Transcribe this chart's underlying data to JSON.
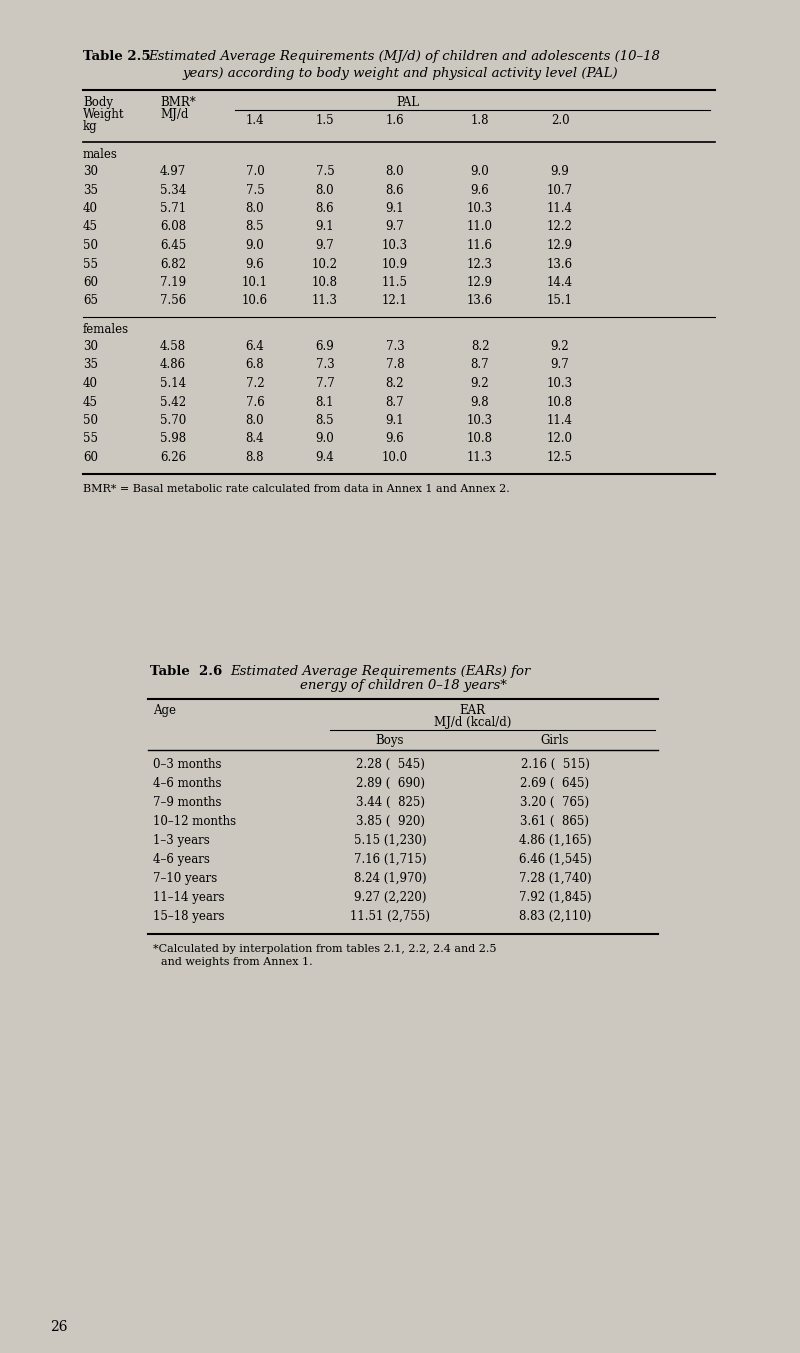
{
  "bg_color": "#ccc8bf",
  "page_number": "26",
  "table25": {
    "title_bold": "Table 2.5",
    "title_italic_line1": "Estimated Average Requirements (MJ/d) of children and adolescents (10–18",
    "title_italic_line2": "years) according to body weight and physical activity level (PAL)",
    "pal_header": "PAL",
    "males_label": "males",
    "females_label": "females",
    "males_data": [
      [
        "30",
        "4.97",
        "7.0",
        "7.5",
        "8.0",
        "9.0",
        "9.9"
      ],
      [
        "35",
        "5.34",
        "7.5",
        "8.0",
        "8.6",
        "9.6",
        "10.7"
      ],
      [
        "40",
        "5.71",
        "8.0",
        "8.6",
        "9.1",
        "10.3",
        "11.4"
      ],
      [
        "45",
        "6.08",
        "8.5",
        "9.1",
        "9.7",
        "11.0",
        "12.2"
      ],
      [
        "50",
        "6.45",
        "9.0",
        "9.7",
        "10.3",
        "11.6",
        "12.9"
      ],
      [
        "55",
        "6.82",
        "9.6",
        "10.2",
        "10.9",
        "12.3",
        "13.6"
      ],
      [
        "60",
        "7.19",
        "10.1",
        "10.8",
        "11.5",
        "12.9",
        "14.4"
      ],
      [
        "65",
        "7.56",
        "10.6",
        "11.3",
        "12.1",
        "13.6",
        "15.1"
      ]
    ],
    "females_data": [
      [
        "30",
        "4.58",
        "6.4",
        "6.9",
        "7.3",
        "8.2",
        "9.2"
      ],
      [
        "35",
        "4.86",
        "6.8",
        "7.3",
        "7.8",
        "8.7",
        "9.7"
      ],
      [
        "40",
        "5.14",
        "7.2",
        "7.7",
        "8.2",
        "9.2",
        "10.3"
      ],
      [
        "45",
        "5.42",
        "7.6",
        "8.1",
        "8.7",
        "9.8",
        "10.8"
      ],
      [
        "50",
        "5.70",
        "8.0",
        "8.5",
        "9.1",
        "10.3",
        "11.4"
      ],
      [
        "55",
        "5.98",
        "8.4",
        "9.0",
        "9.6",
        "10.8",
        "12.0"
      ],
      [
        "60",
        "6.26",
        "8.8",
        "9.4",
        "10.0",
        "11.3",
        "12.5"
      ]
    ],
    "footnote": "BMR* = Basal metabolic rate calculated from data in Annex 1 and Annex 2."
  },
  "table26": {
    "title_bold": "Table  2.6",
    "title_italic_line1": "Estimated Average Requirements (EARs) for",
    "title_italic_line2": "energy of children 0–18 years*",
    "age_header": "Age",
    "ear_line1": "EAR",
    "ear_line2": "MJ/d (kcal/d)",
    "boys_header": "Boys",
    "girls_header": "Girls",
    "rows": [
      [
        "0–3 months",
        "2.28 (  545)",
        "2.16 (  515)"
      ],
      [
        "4–6 months",
        "2.89 (  690)",
        "2.69 (  645)"
      ],
      [
        "7–9 months",
        "3.44 (  825)",
        "3.20 (  765)"
      ],
      [
        "10–12 months",
        "3.85 (  920)",
        "3.61 (  865)"
      ],
      [
        "1–3 years",
        "5.15 (1,230)",
        "4.86 (1,165)"
      ],
      [
        "4–6 years",
        "7.16 (1,715)",
        "6.46 (1,545)"
      ],
      [
        "7–10 years",
        "8.24 (1,970)",
        "7.28 (1,740)"
      ],
      [
        "11–14 years",
        "9.27 (2,220)",
        "7.92 (1,845)"
      ],
      [
        "15–18 years",
        "11.51 (2,755)",
        "8.83 (2,110)"
      ]
    ],
    "footnote_line1": "*Calculated by interpolation from tables 2.1, 2.2, 2.4 and 2.5",
    "footnote_line2": "and weights from Annex 1."
  }
}
